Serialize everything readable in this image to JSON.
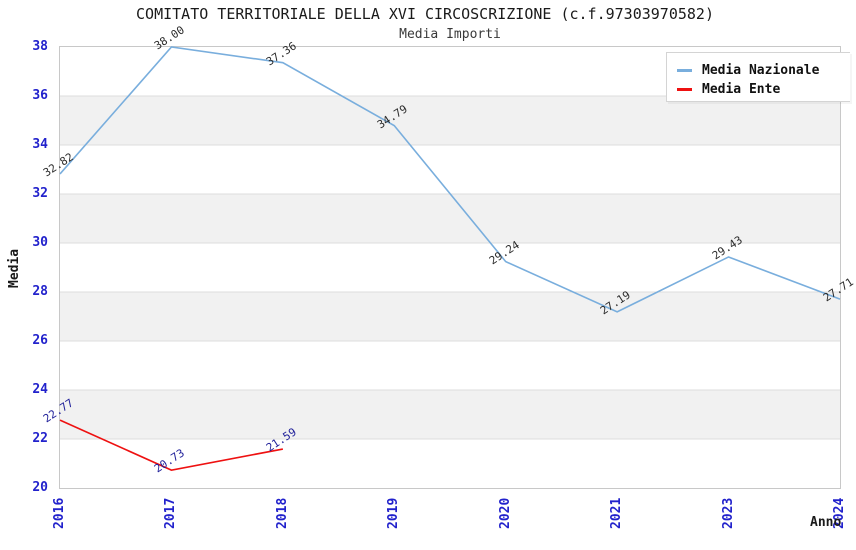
{
  "chart_data": {
    "type": "line",
    "title": "COMITATO TERRITORIALE DELLA XVI CIRCOSCRIZIONE (c.f.97303970582)",
    "subtitle": "Media Importi",
    "xlabel": "Anno",
    "ylabel": "Media",
    "categories": [
      "2016",
      "2017",
      "2018",
      "2019",
      "2020",
      "2021",
      "2023",
      "2024"
    ],
    "series": [
      {
        "name": "Media Nazionale",
        "color": "#79aedd",
        "label_color": "#2b2b2b",
        "values": [
          32.82,
          38.0,
          37.36,
          34.79,
          29.24,
          27.19,
          29.43,
          27.71
        ]
      },
      {
        "name": "Media Ente",
        "color": "#ee1111",
        "label_color": "#20209a",
        "values": [
          22.77,
          20.73,
          21.59,
          null,
          null,
          null,
          null,
          null
        ]
      }
    ],
    "ylim": [
      20,
      38
    ],
    "yticks": [
      38,
      36,
      34,
      32,
      30,
      28,
      26,
      24,
      22,
      20
    ],
    "grid": true,
    "legend_position": "top-right",
    "colors": {
      "tick_label": "#2222cc",
      "grid_line": "#dddddd",
      "band": "#f1f1f1",
      "plot_border": "#c8c8c8",
      "title_text": "#1a1a1a",
      "subtitle_text": "#3a3a3a"
    }
  }
}
